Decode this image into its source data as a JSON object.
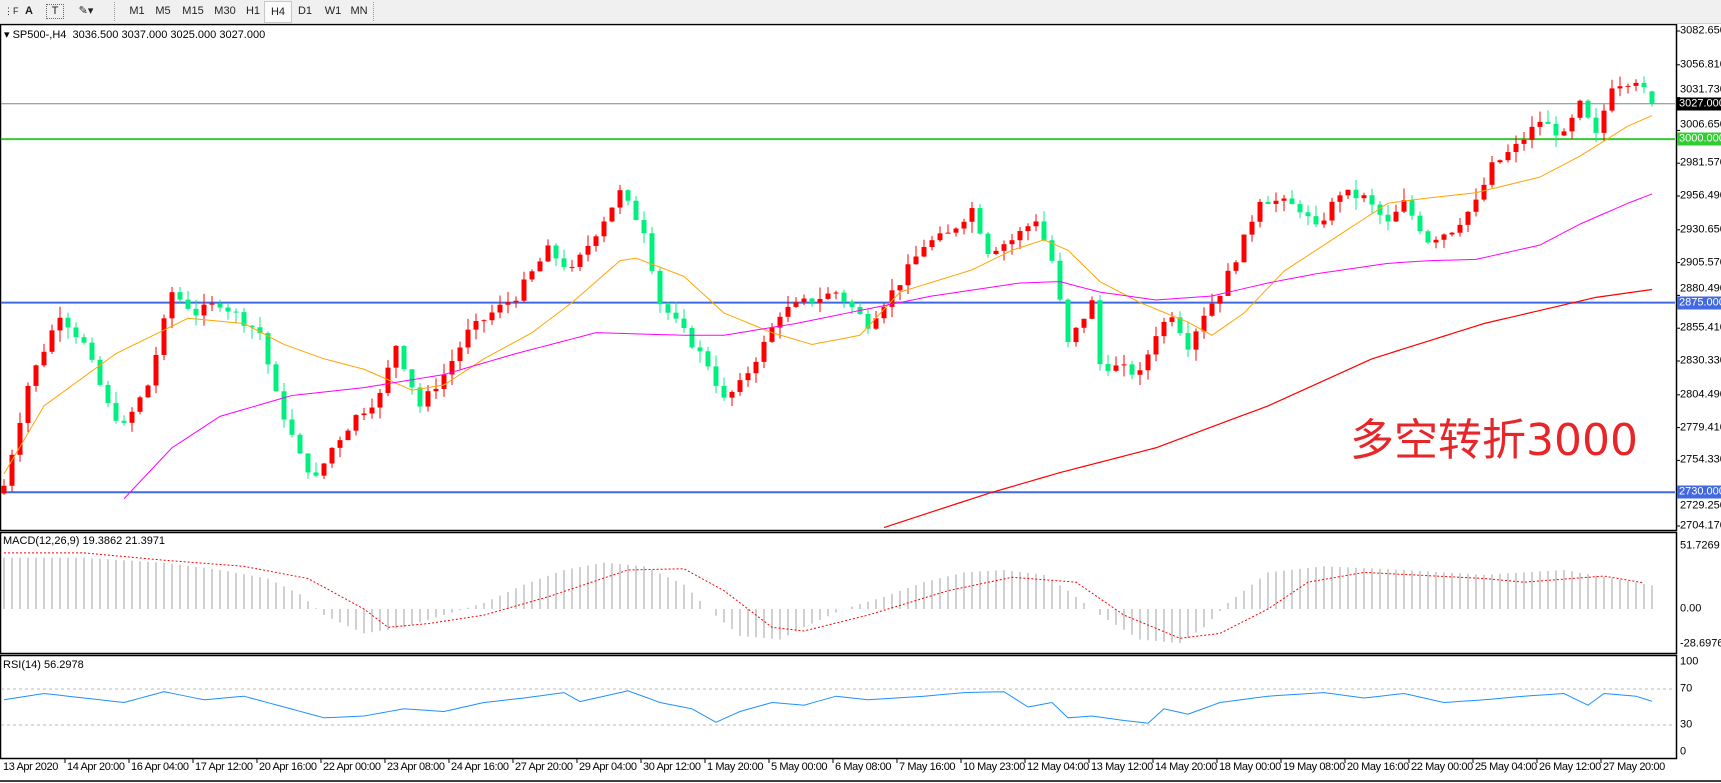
{
  "toolbar": {
    "icons": [
      "grid-f-icon",
      "text-a-icon",
      "text-label-icon",
      "shapes-icon"
    ],
    "timeframes": [
      "M1",
      "M5",
      "M15",
      "M30",
      "H1",
      "H4",
      "D1",
      "W1",
      "MN"
    ],
    "active_timeframe": "H4"
  },
  "header": {
    "symbol": "SP500-,H4",
    "ohlc": "3036.500 3037.000 3025.000 3027.000"
  },
  "annotation": {
    "text": "多空转折3000",
    "color": "#e8262a"
  },
  "chart_data": [
    {
      "type": "candlestick",
      "symbol": "SP500-",
      "timeframe": "H4",
      "last_bar": {
        "open": 3036.5,
        "high": 3037.0,
        "low": 3025.0,
        "close": 3027.0
      },
      "bull_color": "#ff0000",
      "bear_color": "#00f080",
      "ylim": [
        2704.17,
        3082.65
      ],
      "y_ticks": [
        "3082.650",
        "3056.810",
        "3031.730",
        "3006.650",
        "2981.570",
        "2956.490",
        "2930.650",
        "2905.570",
        "2880.490",
        "2855.410",
        "2830.330",
        "2804.490",
        "2779.410",
        "2754.330",
        "2729.250",
        "2704.170"
      ],
      "x_ticks": [
        "13 Apr 2020",
        "14 Apr 20:00",
        "16 Apr 04:00",
        "17 Apr 12:00",
        "20 Apr 16:00",
        "22 Apr 00:00",
        "23 Apr 08:00",
        "24 Apr 16:00",
        "27 Apr 20:00",
        "29 Apr 04:00",
        "30 Apr 12:00",
        "1 May 20:00",
        "5 May 00:00",
        "6 May 08:00",
        "7 May 16:00",
        "10 May 23:00",
        "12 May 04:00",
        "13 May 12:00",
        "14 May 20:00",
        "18 May 00:00",
        "19 May 08:00",
        "20 May 16:00",
        "22 May 00:00",
        "25 May 04:00",
        "26 May 12:00",
        "27 May 20:00"
      ],
      "bar_count": 207,
      "close_waypoints": [
        [
          0,
          2735
        ],
        [
          3,
          2812
        ],
        [
          7,
          2867
        ],
        [
          10,
          2843
        ],
        [
          13,
          2796
        ],
        [
          15,
          2780
        ],
        [
          18,
          2812
        ],
        [
          21,
          2883
        ],
        [
          24,
          2867
        ],
        [
          27,
          2875
        ],
        [
          32,
          2852
        ],
        [
          34,
          2804
        ],
        [
          37,
          2757
        ],
        [
          39,
          2740
        ],
        [
          41,
          2764
        ],
        [
          44,
          2788
        ],
        [
          47,
          2804
        ],
        [
          49,
          2843
        ],
        [
          52,
          2796
        ],
        [
          55,
          2820
        ],
        [
          58,
          2852
        ],
        [
          61,
          2867
        ],
        [
          64,
          2880
        ],
        [
          68,
          2915
        ],
        [
          71,
          2899
        ],
        [
          75,
          2939
        ],
        [
          77,
          2959
        ],
        [
          80,
          2931
        ],
        [
          82,
          2875
        ],
        [
          85,
          2852
        ],
        [
          88,
          2828
        ],
        [
          90,
          2800
        ],
        [
          92,
          2812
        ],
        [
          95,
          2843
        ],
        [
          97,
          2867
        ],
        [
          100,
          2875
        ],
        [
          104,
          2883
        ],
        [
          108,
          2859
        ],
        [
          110,
          2875
        ],
        [
          112,
          2891
        ],
        [
          115,
          2919
        ],
        [
          118,
          2927
        ],
        [
          121,
          2947
        ],
        [
          123,
          2915
        ],
        [
          126,
          2923
        ],
        [
          129,
          2939
        ],
        [
          131,
          2907
        ],
        [
          133,
          2843
        ],
        [
          136,
          2875
        ],
        [
          137,
          2828
        ],
        [
          140,
          2824
        ],
        [
          142,
          2820
        ],
        [
          144,
          2852
        ],
        [
          146,
          2867
        ],
        [
          148,
          2843
        ],
        [
          150,
          2867
        ],
        [
          152,
          2883
        ],
        [
          155,
          2923
        ],
        [
          157,
          2955
        ],
        [
          160,
          2951
        ],
        [
          162,
          2947
        ],
        [
          164,
          2931
        ],
        [
          167,
          2959
        ],
        [
          170,
          2955
        ],
        [
          173,
          2935
        ],
        [
          175,
          2951
        ],
        [
          178,
          2923
        ],
        [
          181,
          2931
        ],
        [
          184,
          2951
        ],
        [
          186,
          2979
        ],
        [
          189,
          2994
        ],
        [
          192,
          3014
        ],
        [
          195,
          3002
        ],
        [
          197,
          3026
        ],
        [
          199,
          3002
        ],
        [
          201,
          3042
        ],
        [
          204,
          3046
        ],
        [
          205,
          3036.5
        ],
        [
          206,
          3027
        ]
      ],
      "moving_averages": [
        {
          "color": "#ffa500",
          "points": [
            [
              0,
              2744
            ],
            [
              5,
              2796
            ],
            [
              14,
              2836
            ],
            [
              18,
              2848
            ],
            [
              23,
              2863
            ],
            [
              30,
              2859
            ],
            [
              35,
              2843
            ],
            [
              40,
              2832
            ],
            [
              45,
              2824
            ],
            [
              51,
              2808
            ],
            [
              55,
              2812
            ],
            [
              60,
              2832
            ],
            [
              66,
              2852
            ],
            [
              71,
              2875
            ],
            [
              77,
              2907
            ],
            [
              79,
              2909
            ],
            [
              85,
              2895
            ],
            [
              90,
              2867
            ],
            [
              96,
              2852
            ],
            [
              101,
              2843
            ],
            [
              107,
              2850
            ],
            [
              112,
              2883
            ],
            [
              121,
              2900
            ],
            [
              126,
              2915
            ],
            [
              130,
              2923
            ],
            [
              133,
              2915
            ],
            [
              137,
              2891
            ],
            [
              142,
              2875
            ],
            [
              148,
              2860
            ],
            [
              151,
              2850
            ],
            [
              155,
              2867
            ],
            [
              160,
              2899
            ],
            [
              166,
              2923
            ],
            [
              173,
              2951
            ],
            [
              178,
              2955
            ],
            [
              184,
              2959
            ],
            [
              192,
              2971
            ],
            [
              197,
              2987
            ],
            [
              203,
              3010
            ],
            [
              206,
              3018
            ]
          ]
        },
        {
          "color": "#ff00ff",
          "points": [
            [
              15,
              2725
            ],
            [
              21,
              2764
            ],
            [
              27,
              2788
            ],
            [
              36,
              2804
            ],
            [
              45,
              2810
            ],
            [
              55,
              2820
            ],
            [
              64,
              2836
            ],
            [
              74,
              2852
            ],
            [
              85,
              2850
            ],
            [
              90,
              2850
            ],
            [
              99,
              2859
            ],
            [
              107,
              2869
            ],
            [
              116,
              2880
            ],
            [
              127,
              2890
            ],
            [
              132,
              2891
            ],
            [
              137,
              2883
            ],
            [
              144,
              2877
            ],
            [
              151,
              2880
            ],
            [
              158,
              2890
            ],
            [
              164,
              2897
            ],
            [
              173,
              2905
            ],
            [
              178,
              2907
            ],
            [
              184,
              2908
            ],
            [
              192,
              2919
            ],
            [
              197,
              2935
            ],
            [
              203,
              2951
            ],
            [
              206,
              2958
            ]
          ]
        },
        {
          "color": "#ff0000",
          "points": [
            [
              110,
              2703
            ],
            [
              123,
              2729
            ],
            [
              132,
              2745
            ],
            [
              144,
              2764
            ],
            [
              158,
              2796
            ],
            [
              171,
              2832
            ],
            [
              185,
              2859
            ],
            [
              199,
              2879
            ],
            [
              206,
              2885
            ]
          ]
        }
      ],
      "horizontal_lines": [
        {
          "value": 3027.0,
          "label": "3027.000",
          "color": "#778899",
          "tag_bg": "#000000"
        },
        {
          "value": 3000.0,
          "label": "3000.000",
          "color": "#32cd32",
          "tag_bg": "#32cd32"
        },
        {
          "value": 2875.0,
          "label": "2875.000",
          "color": "#4169e1",
          "tag_bg": "#4169e1"
        },
        {
          "value": 2730.0,
          "label": "2730.000",
          "color": "#4169e1",
          "tag_bg": "#4169e1"
        }
      ]
    },
    {
      "type": "macd",
      "label": "MACD(12,26,9) 19.3862 21.3971",
      "ylim": [
        -28.6976,
        51.7269
      ],
      "y_ticks": [
        "51.7269",
        "0.00",
        "-28.6976"
      ],
      "histogram_color": "#c0c0c0",
      "signal_color": "#ff0000",
      "histogram_waypoints": [
        [
          0,
          42
        ],
        [
          10,
          42
        ],
        [
          20,
          38
        ],
        [
          27,
          32
        ],
        [
          33,
          25
        ],
        [
          37,
          12
        ],
        [
          40,
          -5
        ],
        [
          45,
          -20
        ],
        [
          50,
          -15
        ],
        [
          55,
          -5
        ],
        [
          60,
          5
        ],
        [
          65,
          20
        ],
        [
          70,
          32
        ],
        [
          75,
          38
        ],
        [
          80,
          35
        ],
        [
          85,
          20
        ],
        [
          88,
          0
        ],
        [
          92,
          -22
        ],
        [
          97,
          -25
        ],
        [
          100,
          -15
        ],
        [
          105,
          0
        ],
        [
          110,
          10
        ],
        [
          115,
          22
        ],
        [
          120,
          30
        ],
        [
          125,
          32
        ],
        [
          130,
          28
        ],
        [
          133,
          15
        ],
        [
          137,
          -5
        ],
        [
          142,
          -25
        ],
        [
          147,
          -28
        ],
        [
          150,
          -15
        ],
        [
          153,
          5
        ],
        [
          158,
          30
        ],
        [
          165,
          35
        ],
        [
          175,
          32
        ],
        [
          185,
          28
        ],
        [
          195,
          32
        ],
        [
          206,
          19.3862
        ]
      ],
      "signal_waypoints": [
        [
          0,
          46
        ],
        [
          10,
          46
        ],
        [
          20,
          40
        ],
        [
          30,
          35
        ],
        [
          38,
          25
        ],
        [
          45,
          0
        ],
        [
          48,
          -15
        ],
        [
          53,
          -12
        ],
        [
          60,
          -5
        ],
        [
          68,
          10
        ],
        [
          78,
          32
        ],
        [
          85,
          33
        ],
        [
          90,
          15
        ],
        [
          96,
          -15
        ],
        [
          100,
          -18
        ],
        [
          108,
          -5
        ],
        [
          118,
          15
        ],
        [
          126,
          26
        ],
        [
          134,
          22
        ],
        [
          140,
          -5
        ],
        [
          147,
          -24
        ],
        [
          152,
          -20
        ],
        [
          158,
          0
        ],
        [
          163,
          22
        ],
        [
          170,
          30
        ],
        [
          185,
          25
        ],
        [
          190,
          22
        ],
        [
          200,
          27
        ],
        [
          205,
          21.3971
        ]
      ]
    },
    {
      "type": "rsi",
      "label": "RSI(14) 56.2978",
      "ylim": [
        0,
        100
      ],
      "y_ticks": [
        "100",
        "70",
        "30",
        "0"
      ],
      "levels": [
        70,
        30
      ],
      "line_color": "#1e90ff",
      "waypoints": [
        [
          0,
          58
        ],
        [
          5,
          65
        ],
        [
          10,
          60
        ],
        [
          15,
          55
        ],
        [
          20,
          67
        ],
        [
          25,
          58
        ],
        [
          30,
          62
        ],
        [
          35,
          50
        ],
        [
          40,
          38
        ],
        [
          45,
          40
        ],
        [
          50,
          48
        ],
        [
          55,
          45
        ],
        [
          60,
          55
        ],
        [
          65,
          60
        ],
        [
          70,
          66
        ],
        [
          72,
          56
        ],
        [
          78,
          68
        ],
        [
          82,
          55
        ],
        [
          86,
          48
        ],
        [
          89,
          33
        ],
        [
          92,
          45
        ],
        [
          96,
          55
        ],
        [
          100,
          52
        ],
        [
          104,
          62
        ],
        [
          108,
          58
        ],
        [
          115,
          62
        ],
        [
          120,
          66
        ],
        [
          125,
          67
        ],
        [
          128,
          50
        ],
        [
          131,
          55
        ],
        [
          133,
          38
        ],
        [
          136,
          40
        ],
        [
          140,
          35
        ],
        [
          143,
          32
        ],
        [
          145,
          48
        ],
        [
          148,
          42
        ],
        [
          152,
          55
        ],
        [
          158,
          62
        ],
        [
          165,
          66
        ],
        [
          170,
          60
        ],
        [
          175,
          65
        ],
        [
          180,
          55
        ],
        [
          185,
          58
        ],
        [
          190,
          62
        ],
        [
          195,
          65
        ],
        [
          198,
          52
        ],
        [
          200,
          65
        ],
        [
          204,
          62
        ],
        [
          206,
          56.2978
        ]
      ]
    }
  ]
}
